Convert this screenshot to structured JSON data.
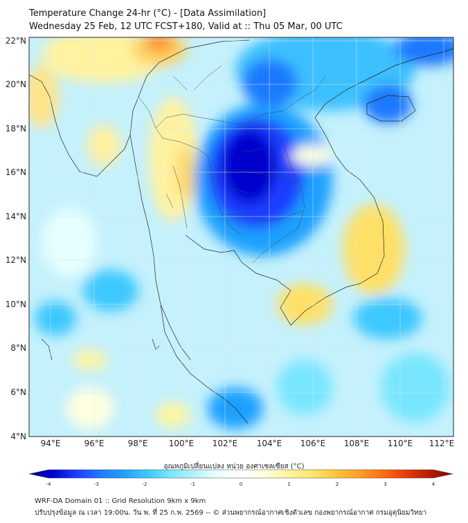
{
  "header": {
    "title_line1": "Temperature Change 24-hr (°C) - [Data Assimilation]",
    "title_line2": "Wednesday 25 Feb, 12 UTC FCST+180, Valid at :: Thu 05 Mar, 00 UTC"
  },
  "map": {
    "lat_labels": [
      "22°N",
      "20°N",
      "18°N",
      "16°N",
      "14°N",
      "12°N",
      "10°N",
      "8°N",
      "6°N",
      "4°N"
    ],
    "lon_labels": [
      "94°E",
      "96°E",
      "98°E",
      "100°E",
      "102°E",
      "104°E",
      "106°E",
      "108°E",
      "110°E",
      "112°E"
    ],
    "lat_range": [
      4,
      22.2
    ],
    "lon_range": [
      93,
      112.4
    ]
  },
  "colorbar": {
    "label": "อุณหภูมิเปลี่ยนแปลง หน่วย องศาเซลเซียส (°C)",
    "ticks": [
      "-4",
      "-3",
      "-2",
      "-1",
      "0",
      "1",
      "2",
      "3",
      "4"
    ],
    "range": [
      -4,
      4
    ],
    "colors": [
      "#00008b",
      "#0000cd",
      "#1e3cff",
      "#1e78ff",
      "#1ea0ff",
      "#3cc8ff",
      "#78e6ff",
      "#b4f0ff",
      "#e6ffff",
      "#ffffff",
      "#ffffe0",
      "#fff5a0",
      "#ffe66e",
      "#ffc83c",
      "#ffa028",
      "#ff6e14",
      "#e63c0a",
      "#b41e00",
      "#8b0000"
    ]
  },
  "footer": {
    "line1": "WRF-DA Domain 01 :: Grid Resolution 9km x 9km",
    "line2": "ปรับปรุงข้อมูล ณ เวลา 19:00น. วัน พ. ที่ 25 ก.พ. 2569 -- © ส่วนพยากรณ์อากาศเชิงตัวเลข กองพยากรณ์อากาศ กรมอุตุนิยมวิทยา"
  }
}
